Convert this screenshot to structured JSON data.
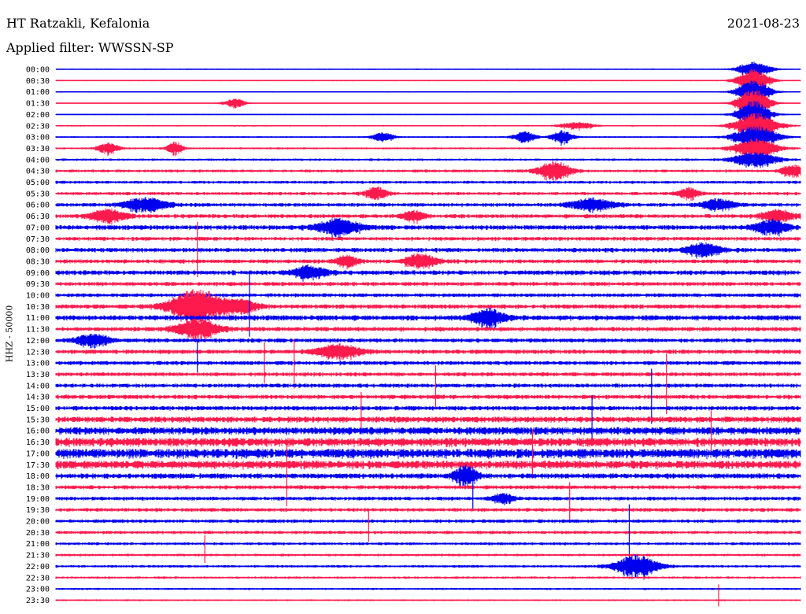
{
  "header": {
    "station": "HT Ratzakli, Kefalonia",
    "filter": "Applied filter: WWSSN-SP",
    "date": "2021-08-23"
  },
  "chart_data": {
    "type": "line",
    "ylabel": "HHZ - 50000",
    "trace_colors": [
      "#0000ee",
      "#ff1a4d"
    ],
    "rows": [
      "00:00",
      "00:30",
      "01:00",
      "01:30",
      "02:00",
      "02:30",
      "03:00",
      "03:30",
      "04:00",
      "04:30",
      "05:00",
      "05:30",
      "06:00",
      "06:30",
      "07:00",
      "07:30",
      "08:00",
      "08:30",
      "09:00",
      "09:30",
      "10:00",
      "10:30",
      "11:00",
      "11:30",
      "12:00",
      "12:30",
      "13:00",
      "13:30",
      "14:00",
      "14:30",
      "15:00",
      "15:30",
      "16:00",
      "16:30",
      "17:00",
      "17:30",
      "18:00",
      "18:30",
      "19:00",
      "19:30",
      "20:00",
      "20:30",
      "21:00",
      "21:30",
      "22:00",
      "22:30",
      "23:00",
      "23:30"
    ],
    "row_noise_level": [
      0.4,
      0.4,
      0.4,
      0.3,
      0.4,
      0.5,
      0.6,
      0.7,
      0.8,
      1.0,
      1.0,
      1.1,
      1.3,
      1.4,
      1.6,
      1.3,
      1.5,
      1.4,
      1.6,
      1.4,
      1.3,
      1.5,
      1.8,
      1.5,
      1.4,
      1.5,
      1.4,
      1.4,
      1.4,
      1.5,
      1.5,
      2.0,
      2.6,
      3.0,
      3.2,
      2.8,
      1.8,
      1.4,
      1.3,
      1.3,
      1.2,
      1.1,
      1.0,
      0.9,
      0.9,
      0.8,
      0.7,
      0.6
    ],
    "events": [
      {
        "row": 0,
        "t": 0.937,
        "amp": 10,
        "dur": 0.03
      },
      {
        "row": 1,
        "t": 0.937,
        "amp": 14,
        "dur": 0.03
      },
      {
        "row": 2,
        "t": 0.937,
        "amp": 16,
        "dur": 0.03
      },
      {
        "row": 3,
        "t": 0.937,
        "amp": 18,
        "dur": 0.03
      },
      {
        "row": 4,
        "t": 0.937,
        "amp": 18,
        "dur": 0.03
      },
      {
        "row": 5,
        "t": 0.94,
        "amp": 16,
        "dur": 0.04
      },
      {
        "row": 6,
        "t": 0.94,
        "amp": 14,
        "dur": 0.04
      },
      {
        "row": 7,
        "t": 0.94,
        "amp": 12,
        "dur": 0.04
      },
      {
        "row": 8,
        "t": 0.94,
        "amp": 10,
        "dur": 0.04
      },
      {
        "row": 3,
        "t": 0.24,
        "amp": 6,
        "dur": 0.02
      },
      {
        "row": 7,
        "t": 0.07,
        "amp": 7,
        "dur": 0.02
      },
      {
        "row": 7,
        "t": 0.16,
        "amp": 8,
        "dur": 0.015
      },
      {
        "row": 5,
        "t": 0.7,
        "amp": 5,
        "dur": 0.03
      },
      {
        "row": 6,
        "t": 0.44,
        "amp": 6,
        "dur": 0.02
      },
      {
        "row": 6,
        "t": 0.63,
        "amp": 7,
        "dur": 0.02
      },
      {
        "row": 6,
        "t": 0.68,
        "amp": 8,
        "dur": 0.02
      },
      {
        "row": 9,
        "t": 0.67,
        "amp": 12,
        "dur": 0.03
      },
      {
        "row": 9,
        "t": 0.99,
        "amp": 8,
        "dur": 0.02
      },
      {
        "row": 11,
        "t": 0.43,
        "amp": 8,
        "dur": 0.02
      },
      {
        "row": 11,
        "t": 0.85,
        "amp": 7,
        "dur": 0.02
      },
      {
        "row": 12,
        "t": 0.12,
        "amp": 9,
        "dur": 0.04
      },
      {
        "row": 12,
        "t": 0.72,
        "amp": 8,
        "dur": 0.04
      },
      {
        "row": 12,
        "t": 0.89,
        "amp": 7,
        "dur": 0.03
      },
      {
        "row": 13,
        "t": 0.07,
        "amp": 9,
        "dur": 0.03
      },
      {
        "row": 13,
        "t": 0.48,
        "amp": 7,
        "dur": 0.02
      },
      {
        "row": 13,
        "t": 0.97,
        "amp": 8,
        "dur": 0.03
      },
      {
        "row": 14,
        "t": 0.38,
        "amp": 10,
        "dur": 0.04
      },
      {
        "row": 14,
        "t": 0.96,
        "amp": 9,
        "dur": 0.03
      },
      {
        "row": 16,
        "t": 0.87,
        "amp": 9,
        "dur": 0.03
      },
      {
        "row": 17,
        "t": 0.49,
        "amp": 9,
        "dur": 0.03
      },
      {
        "row": 17,
        "t": 0.39,
        "amp": 7,
        "dur": 0.02
      },
      {
        "row": 18,
        "t": 0.34,
        "amp": 8,
        "dur": 0.03
      },
      {
        "row": 21,
        "t": 0.19,
        "amp": 22,
        "dur": 0.05
      },
      {
        "row": 21,
        "t": 0.25,
        "amp": 8,
        "dur": 0.03
      },
      {
        "row": 22,
        "t": 0.58,
        "amp": 11,
        "dur": 0.03
      },
      {
        "row": 23,
        "t": 0.19,
        "amp": 12,
        "dur": 0.04
      },
      {
        "row": 24,
        "t": 0.05,
        "amp": 8,
        "dur": 0.03
      },
      {
        "row": 25,
        "t": 0.38,
        "amp": 9,
        "dur": 0.04
      },
      {
        "row": 36,
        "t": 0.55,
        "amp": 14,
        "dur": 0.02
      },
      {
        "row": 38,
        "t": 0.6,
        "amp": 6,
        "dur": 0.02
      },
      {
        "row": 44,
        "t": 0.78,
        "amp": 14,
        "dur": 0.04
      }
    ],
    "spikes": [
      {
        "row": 17,
        "t": 0.19,
        "amp": 50,
        "dir": 1
      },
      {
        "row": 22,
        "t": 0.26,
        "amp": 60,
        "dir": 1
      },
      {
        "row": 25,
        "t": 0.28,
        "amp": 40,
        "dir": -1
      },
      {
        "row": 26,
        "t": 0.19,
        "amp": 30,
        "dir": 1
      },
      {
        "row": 27,
        "t": 0.32,
        "amp": 45,
        "dir": 1
      },
      {
        "row": 29,
        "t": 0.51,
        "amp": 40,
        "dir": 1
      },
      {
        "row": 29,
        "t": 0.82,
        "amp": 55,
        "dir": 1
      },
      {
        "row": 30,
        "t": 0.8,
        "amp": 50,
        "dir": 1
      },
      {
        "row": 31,
        "t": 0.41,
        "amp": 35,
        "dir": 1
      },
      {
        "row": 32,
        "t": 0.72,
        "amp": 45,
        "dir": 1
      },
      {
        "row": 33,
        "t": 0.88,
        "amp": 40,
        "dir": 1
      },
      {
        "row": 35,
        "t": 0.64,
        "amp": 45,
        "dir": 1
      },
      {
        "row": 37,
        "t": 0.31,
        "amp": 60,
        "dir": 1
      },
      {
        "row": 38,
        "t": 0.56,
        "amp": 40,
        "dir": 1
      },
      {
        "row": 39,
        "t": 0.69,
        "amp": 35,
        "dir": 1
      },
      {
        "row": 41,
        "t": 0.42,
        "amp": 30,
        "dir": 1
      },
      {
        "row": 42,
        "t": 0.77,
        "amp": 50,
        "dir": 1
      },
      {
        "row": 43,
        "t": 0.2,
        "amp": 25,
        "dir": 1
      },
      {
        "row": 47,
        "t": 0.89,
        "amp": 20,
        "dir": 1
      }
    ]
  }
}
